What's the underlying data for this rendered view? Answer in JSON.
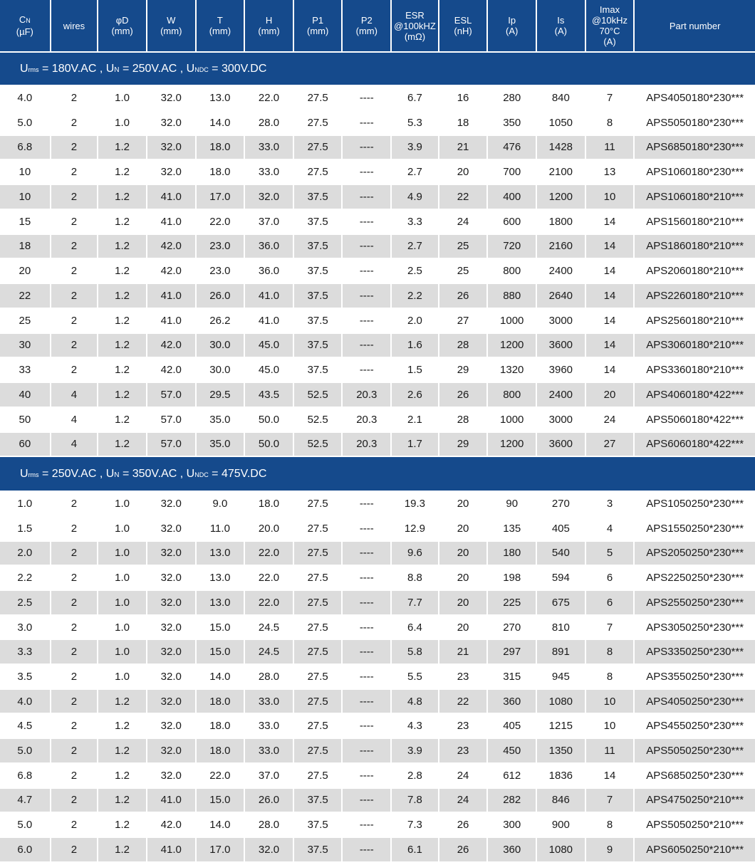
{
  "headers": [
    {
      "lines": [
        "C",
        "(µF)"
      ],
      "sub": "N"
    },
    {
      "lines": [
        "wires"
      ]
    },
    {
      "lines": [
        "φD",
        "(mm)"
      ]
    },
    {
      "lines": [
        "W",
        "(mm)"
      ]
    },
    {
      "lines": [
        "T",
        "(mm)"
      ]
    },
    {
      "lines": [
        "H",
        "(mm)"
      ]
    },
    {
      "lines": [
        "P1",
        "(mm)"
      ]
    },
    {
      "lines": [
        "P2",
        "(mm)"
      ]
    },
    {
      "lines": [
        "ESR",
        "@100kHZ",
        "(mΩ)"
      ]
    },
    {
      "lines": [
        "ESL",
        "(nH)"
      ]
    },
    {
      "lines": [
        "Ip",
        "(A)"
      ]
    },
    {
      "lines": [
        "Is",
        "(A)"
      ]
    },
    {
      "lines": [
        "Imax",
        "@10kHz",
        "70°C",
        "(A)"
      ]
    },
    {
      "lines": [
        "Part number"
      ]
    }
  ],
  "sections": [
    {
      "voltage": {
        "urms": "180V.AC",
        "un": "250V.AC",
        "undc": "300V.DC"
      },
      "rows": [
        [
          "4.0",
          "2",
          "1.0",
          "32.0",
          "13.0",
          "22.0",
          "27.5",
          "----",
          "6.7",
          "16",
          "280",
          "840",
          "7",
          "APS4050180*230***"
        ],
        [
          "5.0",
          "2",
          "1.0",
          "32.0",
          "14.0",
          "28.0",
          "27.5",
          "----",
          "5.3",
          "18",
          "350",
          "1050",
          "8",
          "APS5050180*230***"
        ],
        [
          "6.8",
          "2",
          "1.2",
          "32.0",
          "18.0",
          "33.0",
          "27.5",
          "----",
          "3.9",
          "21",
          "476",
          "1428",
          "11",
          "APS6850180*230***"
        ],
        [
          "10",
          "2",
          "1.2",
          "32.0",
          "18.0",
          "33.0",
          "27.5",
          "----",
          "2.7",
          "20",
          "700",
          "2100",
          "13",
          "APS1060180*230***"
        ],
        [
          "10",
          "2",
          "1.2",
          "41.0",
          "17.0",
          "32.0",
          "37.5",
          "----",
          "4.9",
          "22",
          "400",
          "1200",
          "10",
          "APS1060180*210***"
        ],
        [
          "15",
          "2",
          "1.2",
          "41.0",
          "22.0",
          "37.0",
          "37.5",
          "----",
          "3.3",
          "24",
          "600",
          "1800",
          "14",
          "APS1560180*210***"
        ],
        [
          "18",
          "2",
          "1.2",
          "42.0",
          "23.0",
          "36.0",
          "37.5",
          "----",
          "2.7",
          "25",
          "720",
          "2160",
          "14",
          "APS1860180*210***"
        ],
        [
          "20",
          "2",
          "1.2",
          "42.0",
          "23.0",
          "36.0",
          "37.5",
          "----",
          "2.5",
          "25",
          "800",
          "2400",
          "14",
          "APS2060180*210***"
        ],
        [
          "22",
          "2",
          "1.2",
          "41.0",
          "26.0",
          "41.0",
          "37.5",
          "----",
          "2.2",
          "26",
          "880",
          "2640",
          "14",
          "APS2260180*210***"
        ],
        [
          "25",
          "2",
          "1.2",
          "41.0",
          "26.2",
          "41.0",
          "37.5",
          "----",
          "2.0",
          "27",
          "1000",
          "3000",
          "14",
          "APS2560180*210***"
        ],
        [
          "30",
          "2",
          "1.2",
          "42.0",
          "30.0",
          "45.0",
          "37.5",
          "----",
          "1.6",
          "28",
          "1200",
          "3600",
          "14",
          "APS3060180*210***"
        ],
        [
          "33",
          "2",
          "1.2",
          "42.0",
          "30.0",
          "45.0",
          "37.5",
          "----",
          "1.5",
          "29",
          "1320",
          "3960",
          "14",
          "APS3360180*210***"
        ],
        [
          "40",
          "4",
          "1.2",
          "57.0",
          "29.5",
          "43.5",
          "52.5",
          "20.3",
          "2.6",
          "26",
          "800",
          "2400",
          "20",
          "APS4060180*422***"
        ],
        [
          "50",
          "4",
          "1.2",
          "57.0",
          "35.0",
          "50.0",
          "52.5",
          "20.3",
          "2.1",
          "28",
          "1000",
          "3000",
          "24",
          "APS5060180*422***"
        ],
        [
          "60",
          "4",
          "1.2",
          "57.0",
          "35.0",
          "50.0",
          "52.5",
          "20.3",
          "1.7",
          "29",
          "1200",
          "3600",
          "27",
          "APS6060180*422***"
        ]
      ]
    },
    {
      "voltage": {
        "urms": "250V.AC",
        "un": "350V.AC",
        "undc": "475V.DC"
      },
      "rows": [
        [
          "1.0",
          "2",
          "1.0",
          "32.0",
          "9.0",
          "18.0",
          "27.5",
          "----",
          "19.3",
          "20",
          "90",
          "270",
          "3",
          "APS1050250*230***"
        ],
        [
          "1.5",
          "2",
          "1.0",
          "32.0",
          "11.0",
          "20.0",
          "27.5",
          "----",
          "12.9",
          "20",
          "135",
          "405",
          "4",
          "APS1550250*230***"
        ],
        [
          "2.0",
          "2",
          "1.0",
          "32.0",
          "13.0",
          "22.0",
          "27.5",
          "----",
          "9.6",
          "20",
          "180",
          "540",
          "5",
          "APS2050250*230***"
        ],
        [
          "2.2",
          "2",
          "1.0",
          "32.0",
          "13.0",
          "22.0",
          "27.5",
          "----",
          "8.8",
          "20",
          "198",
          "594",
          "6",
          "APS2250250*230***"
        ],
        [
          "2.5",
          "2",
          "1.0",
          "32.0",
          "13.0",
          "22.0",
          "27.5",
          "----",
          "7.7",
          "20",
          "225",
          "675",
          "6",
          "APS2550250*230***"
        ],
        [
          "3.0",
          "2",
          "1.0",
          "32.0",
          "15.0",
          "24.5",
          "27.5",
          "----",
          "6.4",
          "20",
          "270",
          "810",
          "7",
          "APS3050250*230***"
        ],
        [
          "3.3",
          "2",
          "1.0",
          "32.0",
          "15.0",
          "24.5",
          "27.5",
          "----",
          "5.8",
          "21",
          "297",
          "891",
          "8",
          "APS3350250*230***"
        ],
        [
          "3.5",
          "2",
          "1.0",
          "32.0",
          "14.0",
          "28.0",
          "27.5",
          "----",
          "5.5",
          "23",
          "315",
          "945",
          "8",
          "APS3550250*230***"
        ],
        [
          "4.0",
          "2",
          "1.2",
          "32.0",
          "18.0",
          "33.0",
          "27.5",
          "----",
          "4.8",
          "22",
          "360",
          "1080",
          "10",
          "APS4050250*230***"
        ],
        [
          "4.5",
          "2",
          "1.2",
          "32.0",
          "18.0",
          "33.0",
          "27.5",
          "----",
          "4.3",
          "23",
          "405",
          "1215",
          "10",
          "APS4550250*230***"
        ],
        [
          "5.0",
          "2",
          "1.2",
          "32.0",
          "18.0",
          "33.0",
          "27.5",
          "----",
          "3.9",
          "23",
          "450",
          "1350",
          "11",
          "APS5050250*230***"
        ],
        [
          "6.8",
          "2",
          "1.2",
          "32.0",
          "22.0",
          "37.0",
          "27.5",
          "----",
          "2.8",
          "24",
          "612",
          "1836",
          "14",
          "APS6850250*230***"
        ],
        [
          "4.7",
          "2",
          "1.2",
          "41.0",
          "15.0",
          "26.0",
          "37.5",
          "----",
          "7.8",
          "24",
          "282",
          "846",
          "7",
          "APS4750250*210***"
        ],
        [
          "5.0",
          "2",
          "1.2",
          "42.0",
          "14.0",
          "28.0",
          "37.5",
          "----",
          "7.3",
          "26",
          "300",
          "900",
          "8",
          "APS5050250*210***"
        ],
        [
          "6.0",
          "2",
          "1.2",
          "41.0",
          "17.0",
          "32.0",
          "37.5",
          "----",
          "6.1",
          "26",
          "360",
          "1080",
          "9",
          "APS6050250*210***"
        ]
      ]
    }
  ]
}
